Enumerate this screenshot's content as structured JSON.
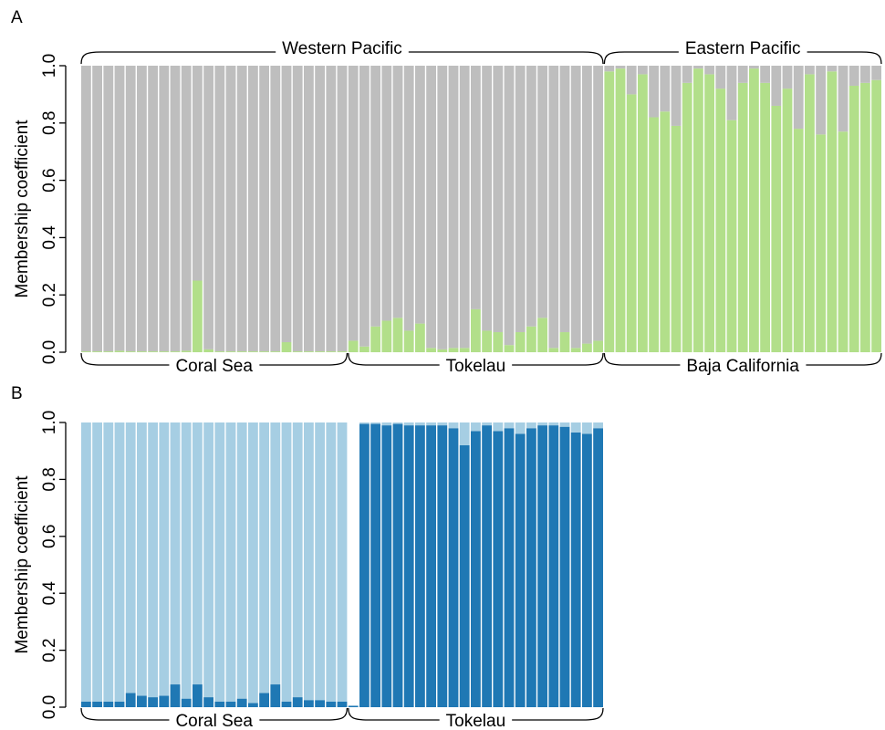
{
  "chart_data": [
    {
      "type": "stacked_bar",
      "panel": "A",
      "ylabel": "Membership coefficient",
      "ylim": [
        0,
        1
      ],
      "yticks": [
        {
          "value": 0,
          "label": "0.0"
        },
        {
          "value": 0.2,
          "label": "0.2"
        },
        {
          "value": 0.4,
          "label": "0.4"
        },
        {
          "value": 0.6,
          "label": "0.6"
        },
        {
          "value": 0.8,
          "label": "0.8"
        },
        {
          "value": 1,
          "label": "1.0"
        }
      ],
      "groups": [
        {
          "label": "Coral Sea",
          "size": 24
        },
        {
          "label": "Tokelau",
          "size": 23
        },
        {
          "label": "Baja California",
          "size": 25
        }
      ],
      "top_groups": [
        {
          "label": "Western Pacific",
          "size": 47
        },
        {
          "label": "Eastern Pacific",
          "size": 25
        }
      ],
      "series": [
        {
          "color": "#b2df8a",
          "values": [
            0.003,
            0.003,
            0.003,
            0.005,
            0.003,
            0.003,
            0.003,
            0.003,
            0.003,
            0.005,
            0.25,
            0.01,
            0.003,
            0.003,
            0.003,
            0.003,
            0.003,
            0.003,
            0.035,
            0.003,
            0.003,
            0.003,
            0.003,
            0.003,
            0.04,
            0.02,
            0.09,
            0.11,
            0.12,
            0.075,
            0.1,
            0.015,
            0.01,
            0.015,
            0.015,
            0.15,
            0.075,
            0.07,
            0.025,
            0.07,
            0.09,
            0.12,
            0.015,
            0.07,
            0.015,
            0.03,
            0.04,
            0.98,
            0.99,
            0.9,
            0.97,
            0.82,
            0.84,
            0.79,
            0.94,
            0.99,
            0.97,
            0.92,
            0.81,
            0.94,
            0.99,
            0.94,
            0.86,
            0.92,
            0.78,
            0.97,
            0.76,
            0.98,
            0.77,
            0.93,
            0.94,
            0.95
          ]
        },
        {
          "color": "#bebebe",
          "values": [
            0.997,
            0.997,
            0.997,
            0.995,
            0.997,
            0.997,
            0.997,
            0.997,
            0.997,
            0.995,
            0.75,
            0.99,
            0.997,
            0.997,
            0.997,
            0.997,
            0.997,
            0.997,
            0.965,
            0.997,
            0.997,
            0.997,
            0.997,
            0.997,
            0.96,
            0.98,
            0.91,
            0.89,
            0.88,
            0.925,
            0.9,
            0.985,
            0.99,
            0.985,
            0.985,
            0.85,
            0.925,
            0.93,
            0.975,
            0.93,
            0.91,
            0.88,
            0.985,
            0.93,
            0.985,
            0.97,
            0.96,
            0.02,
            0.01,
            0.1,
            0.03,
            0.18,
            0.16,
            0.21,
            0.06,
            0.01,
            0.03,
            0.08,
            0.19,
            0.06,
            0.01,
            0.06,
            0.14,
            0.08,
            0.22,
            0.03,
            0.24,
            0.02,
            0.23,
            0.07,
            0.06,
            0.05
          ]
        }
      ]
    },
    {
      "type": "stacked_bar",
      "panel": "B",
      "ylabel": "Membership coefficient",
      "ylim": [
        0,
        1
      ],
      "yticks": [
        {
          "value": 0,
          "label": "0.0"
        },
        {
          "value": 0.2,
          "label": "0.2"
        },
        {
          "value": 0.4,
          "label": "0.4"
        },
        {
          "value": 0.6,
          "label": "0.6"
        },
        {
          "value": 0.8,
          "label": "0.8"
        },
        {
          "value": 1,
          "label": "1.0"
        }
      ],
      "groups": [
        {
          "label": "Coral Sea",
          "size": 24
        },
        {
          "label": "Tokelau",
          "size": 23
        }
      ],
      "series": [
        {
          "color": "#1f78b4",
          "values": [
            0.02,
            0.02,
            0.02,
            0.02,
            0.05,
            0.04,
            0.035,
            0.04,
            0.08,
            0.03,
            0.08,
            0.035,
            0.02,
            0.02,
            0.03,
            0.015,
            0.05,
            0.08,
            0.02,
            0.035,
            0.025,
            0.025,
            0.02,
            0.02,
            0.005,
            0.995,
            0.995,
            0.99,
            0.995,
            0.99,
            0.99,
            0.99,
            0.99,
            0.98,
            0.92,
            0.97,
            0.99,
            0.97,
            0.98,
            0.96,
            0.98,
            0.99,
            0.99,
            0.985,
            0.965,
            0.96,
            0.98
          ]
        },
        {
          "color": "#a6cee3",
          "values": [
            0.98,
            0.98,
            0.98,
            0.98,
            0.95,
            0.96,
            0.965,
            0.96,
            0.92,
            0.97,
            0.92,
            0.965,
            0.98,
            0.98,
            0.97,
            0.985,
            0.95,
            0.92,
            0.98,
            0.965,
            0.975,
            0.975,
            0.98,
            0.98,
            0,
            0.005,
            0.005,
            0.01,
            0.005,
            0.01,
            0.01,
            0.01,
            0.01,
            0.02,
            0.08,
            0.03,
            0.01,
            0.03,
            0.02,
            0.04,
            0.02,
            0.01,
            0.01,
            0.015,
            0.035,
            0.04,
            0.02
          ]
        }
      ]
    }
  ]
}
